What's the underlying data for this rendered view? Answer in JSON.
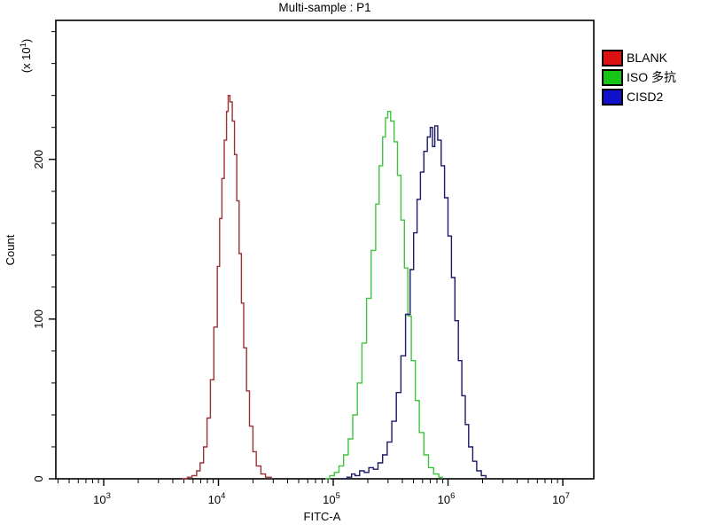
{
  "chart": {
    "title": "Multi-sample : P1",
    "legend": {
      "position": "right",
      "entries": [
        {
          "label": "BLANK",
          "color": "#dd1111"
        },
        {
          "label": "ISO 多抗",
          "color": "#15c415"
        },
        {
          "label": "CISD2",
          "color": "#1111cc"
        }
      ]
    }
  },
  "chart_data": {
    "type": "line",
    "subtype": "flow-cytometry-overlay-histogram",
    "title": "Multi-sample : P1",
    "xlabel": "FITC-A",
    "ylabel": "Count",
    "y_multiplier_label": {
      "prefix": "(x 10",
      "exp": "1",
      "suffix": ")"
    },
    "x_scale": "log10",
    "xlim_log10": [
      2.583,
      7.27
    ],
    "ylim": [
      0,
      287
    ],
    "x_ticks": [
      {
        "base": "10",
        "exp": "3",
        "value": 1000
      },
      {
        "base": "10",
        "exp": "4",
        "value": 10000
      },
      {
        "base": "10",
        "exp": "5",
        "value": 100000
      },
      {
        "base": "10",
        "exp": "6",
        "value": 1000000
      },
      {
        "base": "10",
        "exp": "7",
        "value": 10000000
      }
    ],
    "y_ticks": [
      0,
      100,
      200
    ],
    "y_minor_step": 20,
    "grid": false,
    "legend_position": "outside-right",
    "points_format": "[log10(FITC-A), Count x10^1]",
    "series": [
      {
        "name": "BLANK",
        "color": "#993333",
        "peak_log10x": 4.085,
        "peak_count": 240,
        "points": [
          [
            3.68,
            0
          ],
          [
            3.73,
            1
          ],
          [
            3.77,
            2
          ],
          [
            3.81,
            5
          ],
          [
            3.84,
            10
          ],
          [
            3.87,
            20
          ],
          [
            3.9,
            38
          ],
          [
            3.93,
            62
          ],
          [
            3.96,
            95
          ],
          [
            3.99,
            133
          ],
          [
            4.01,
            163
          ],
          [
            4.03,
            188
          ],
          [
            4.05,
            212
          ],
          [
            4.07,
            230
          ],
          [
            4.085,
            240
          ],
          [
            4.1,
            236
          ],
          [
            4.12,
            224
          ],
          [
            4.14,
            203
          ],
          [
            4.16,
            174
          ],
          [
            4.18,
            141
          ],
          [
            4.2,
            110
          ],
          [
            4.22,
            82
          ],
          [
            4.245,
            55
          ],
          [
            4.27,
            33
          ],
          [
            4.3,
            17
          ],
          [
            4.33,
            8
          ],
          [
            4.37,
            3
          ],
          [
            4.41,
            1
          ],
          [
            4.46,
            0
          ]
        ]
      },
      {
        "name": "ISO 多抗",
        "color": "#3fc43f",
        "peak_log10x": 5.475,
        "peak_count": 230,
        "points": [
          [
            4.93,
            0
          ],
          [
            4.97,
            2
          ],
          [
            5.01,
            4
          ],
          [
            5.05,
            8
          ],
          [
            5.09,
            15
          ],
          [
            5.13,
            25
          ],
          [
            5.17,
            40
          ],
          [
            5.21,
            60
          ],
          [
            5.25,
            85
          ],
          [
            5.29,
            113
          ],
          [
            5.33,
            143
          ],
          [
            5.37,
            172
          ],
          [
            5.4,
            196
          ],
          [
            5.43,
            214
          ],
          [
            5.455,
            226
          ],
          [
            5.475,
            230
          ],
          [
            5.5,
            224
          ],
          [
            5.53,
            211
          ],
          [
            5.56,
            190
          ],
          [
            5.59,
            162
          ],
          [
            5.62,
            132
          ],
          [
            5.65,
            102
          ],
          [
            5.68,
            74
          ],
          [
            5.715,
            49
          ],
          [
            5.75,
            29
          ],
          [
            5.79,
            15
          ],
          [
            5.83,
            7
          ],
          [
            5.875,
            3
          ],
          [
            5.92,
            1
          ],
          [
            5.95,
            0
          ]
        ]
      },
      {
        "name": "CISD2",
        "color": "#1a1a66",
        "peak_log10x": 5.885,
        "peak_count": 221,
        "points": [
          [
            5.08,
            0
          ],
          [
            5.12,
            1
          ],
          [
            5.16,
            3
          ],
          [
            5.19,
            2
          ],
          [
            5.23,
            5
          ],
          [
            5.27,
            4
          ],
          [
            5.31,
            7
          ],
          [
            5.35,
            6
          ],
          [
            5.39,
            10
          ],
          [
            5.43,
            15
          ],
          [
            5.47,
            23
          ],
          [
            5.51,
            36
          ],
          [
            5.55,
            54
          ],
          [
            5.59,
            77
          ],
          [
            5.63,
            103
          ],
          [
            5.67,
            131
          ],
          [
            5.7,
            154
          ],
          [
            5.73,
            175
          ],
          [
            5.76,
            192
          ],
          [
            5.79,
            205
          ],
          [
            5.82,
            214
          ],
          [
            5.845,
            220
          ],
          [
            5.865,
            208
          ],
          [
            5.885,
            221
          ],
          [
            5.91,
            212
          ],
          [
            5.94,
            196
          ],
          [
            5.97,
            176
          ],
          [
            6.0,
            152
          ],
          [
            6.03,
            126
          ],
          [
            6.06,
            99
          ],
          [
            6.09,
            74
          ],
          [
            6.12,
            52
          ],
          [
            6.15,
            34
          ],
          [
            6.18,
            20
          ],
          [
            6.215,
            11
          ],
          [
            6.25,
            5
          ],
          [
            6.29,
            2
          ],
          [
            6.33,
            0
          ]
        ]
      }
    ]
  }
}
